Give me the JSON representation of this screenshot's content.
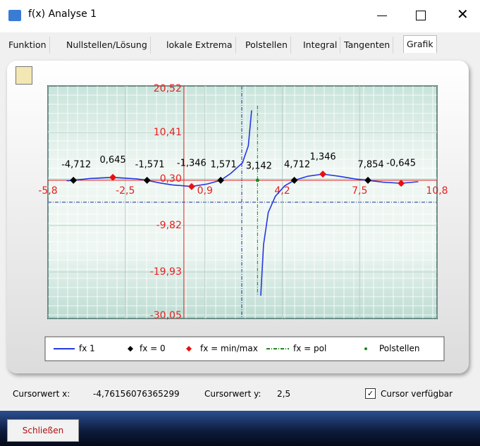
{
  "window": {
    "title": "f(x) Analyse 1"
  },
  "tabs": [
    "Funktion",
    "Nullstellen/Lösung",
    "lokale Extrema",
    "Polstellen",
    "Integral",
    "Tangenten",
    "Grafik"
  ],
  "chart_data": {
    "type": "line",
    "xlim": [
      -5.8,
      10.8
    ],
    "ylim": [
      -30.05,
      20.52
    ],
    "xticks": [
      {
        "value": -5.8,
        "label": "-5,8"
      },
      {
        "value": -2.5,
        "label": "-2,5"
      },
      {
        "value": 0.9,
        "label": "0,9"
      },
      {
        "value": 4.2,
        "label": "4,2"
      },
      {
        "value": 7.5,
        "label": "7,5"
      },
      {
        "value": 10.8,
        "label": "10,8"
      }
    ],
    "yticks": [
      {
        "value": 20.52,
        "label": "20,52"
      },
      {
        "value": 10.41,
        "label": "10,41"
      },
      {
        "value": 0.3,
        "label": "0,30"
      },
      {
        "value": -9.82,
        "label": "-9,82"
      },
      {
        "value": -19.93,
        "label": "-19,93"
      },
      {
        "value": -30.05,
        "label": "-30,05"
      }
    ],
    "grid": true,
    "series": [
      {
        "name": "fx 1",
        "color": "#2438e0",
        "x": [
          -5.0,
          -4.712,
          -4.0,
          -3.03,
          -2.0,
          -1.571,
          -1.0,
          -0.5,
          0.33,
          1.0,
          1.571,
          2.0,
          2.5,
          2.75,
          2.89,
          null,
          3.28,
          3.4,
          3.6,
          3.9,
          4.3,
          4.712,
          5.3,
          5.93,
          6.6,
          7.3,
          7.854,
          8.5,
          9.27,
          10.0
        ],
        "values": [
          -0.1,
          0,
          0.4,
          0.645,
          0.3,
          0,
          -0.6,
          -1.0,
          -1.346,
          -0.8,
          0,
          1.5,
          3.8,
          7.5,
          15.2,
          null,
          -25.1,
          -14,
          -7,
          -3.5,
          -1.2,
          0,
          0.9,
          1.346,
          0.9,
          0.3,
          0,
          -0.4,
          -0.645,
          -0.3
        ]
      }
    ],
    "zeros": {
      "name": "fx = 0",
      "color": "#000000",
      "x": [
        -4.712,
        -1.571,
        1.571,
        4.712,
        7.854
      ],
      "values": [
        0,
        0,
        0,
        0,
        0
      ],
      "x_labels": [
        "-4,712",
        "-1,571",
        "1,571",
        "4,712",
        "7,854"
      ]
    },
    "extrema": {
      "name": "fx = min/max",
      "color": "#e81010",
      "x": [
        -3.03,
        0.33,
        5.93,
        9.27
      ],
      "values": [
        0.645,
        -1.346,
        1.346,
        -0.645
      ],
      "value_labels": [
        "0,645",
        "-1,346",
        "1,346",
        "-0,645"
      ]
    },
    "pole": {
      "name": "fx = pol",
      "color": "#1a8a1a",
      "x": [
        3.142
      ],
      "x_labels": [
        "3,142"
      ]
    },
    "pole_points": {
      "name": "Polstellen",
      "color": "#1a8a1a",
      "x": [
        3.142
      ],
      "values": [
        0
      ]
    }
  },
  "status": {
    "x_label": "Cursorwert x:",
    "x_value": "-4,76156076365299",
    "y_label": "Cursorwert y:",
    "y_value": "2,5",
    "checkbox": "Cursor verfügbar"
  },
  "button": "Schließen"
}
